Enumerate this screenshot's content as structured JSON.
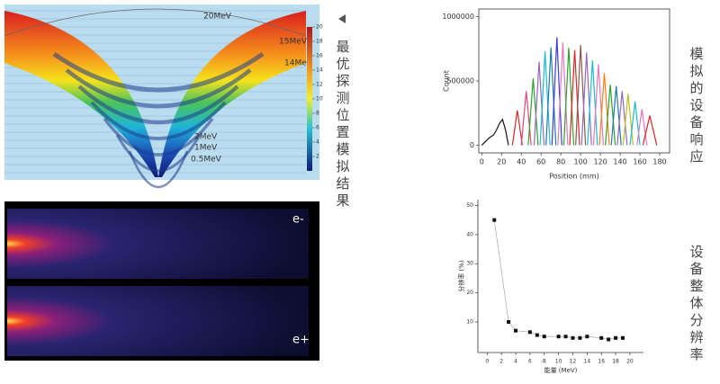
{
  "simulation": {
    "energy_labels": [
      "20MeV",
      "15MeV",
      "14MeV",
      "2MeV",
      "1MeV",
      "0.5MeV"
    ],
    "colorbar": {
      "lim": [
        0,
        20
      ],
      "ticks": [
        2,
        4,
        6,
        8,
        10,
        12,
        14,
        16,
        18,
        20
      ]
    }
  },
  "detector_images": {
    "labels": [
      "e-",
      "e+"
    ]
  },
  "captions": [
    "最优探测位置模拟结果",
    "模拟的设备响应",
    "设备整体分辨率"
  ],
  "chart_data": [
    {
      "type": "line",
      "x_label": "Position (mm)",
      "y_label": "Count",
      "xlim": [
        -3,
        190
      ],
      "ylim": [
        -60000,
        1060000
      ],
      "xticks": [
        0,
        20,
        40,
        60,
        80,
        100,
        120,
        140,
        160,
        180
      ],
      "yticks": [
        0,
        500000,
        1000000
      ],
      "series": [
        {
          "color": "#111111",
          "x": [
            0,
            4,
            8,
            12,
            15,
            18,
            21,
            24,
            27
          ],
          "values": [
            0,
            30000,
            60000,
            80000,
            120000,
            170000,
            200000,
            120000,
            0
          ]
        },
        {
          "color": "#d62728",
          "x": [
            31,
            36,
            41
          ],
          "values": [
            0,
            270000,
            0
          ]
        },
        {
          "color": "#e0457b",
          "x": [
            40,
            45,
            50
          ],
          "values": [
            0,
            420000,
            0
          ]
        },
        {
          "color": "#2ca02c",
          "x": [
            47,
            52,
            57
          ],
          "values": [
            0,
            520000,
            0
          ]
        },
        {
          "color": "#9467bd",
          "x": [
            53,
            58,
            63
          ],
          "values": [
            0,
            650000,
            0
          ]
        },
        {
          "color": "#17becf",
          "x": [
            59,
            64,
            69
          ],
          "values": [
            0,
            730000,
            0
          ]
        },
        {
          "color": "#1f77b4",
          "x": [
            65,
            70,
            75
          ],
          "values": [
            0,
            760000,
            0
          ]
        },
        {
          "color": "#3b3bd6",
          "x": [
            71,
            76,
            81
          ],
          "values": [
            0,
            840000,
            0
          ]
        },
        {
          "color": "#e377c2",
          "x": [
            77,
            82,
            87
          ],
          "values": [
            0,
            800000,
            0
          ]
        },
        {
          "color": "#2ca02c",
          "x": [
            83,
            88,
            93
          ],
          "values": [
            0,
            760000,
            0
          ]
        },
        {
          "color": "#d62728",
          "x": [
            89,
            94,
            99
          ],
          "values": [
            0,
            740000,
            0
          ]
        },
        {
          "color": "#8c564b",
          "x": [
            95,
            100,
            105
          ],
          "values": [
            0,
            780000,
            0
          ]
        },
        {
          "color": "#9467bd",
          "x": [
            101,
            106,
            111
          ],
          "values": [
            0,
            720000,
            0
          ]
        },
        {
          "color": "#17becf",
          "x": [
            107,
            112,
            117
          ],
          "values": [
            0,
            660000,
            0
          ]
        },
        {
          "color": "#e377c2",
          "x": [
            113,
            118,
            123
          ],
          "values": [
            0,
            630000,
            0
          ]
        },
        {
          "color": "#ff7f0e",
          "x": [
            119,
            124,
            129
          ],
          "values": [
            0,
            560000,
            0
          ]
        },
        {
          "color": "#2ca02c",
          "x": [
            125,
            130,
            135
          ],
          "values": [
            0,
            470000,
            0
          ]
        },
        {
          "color": "#1f77b4",
          "x": [
            131,
            136,
            141
          ],
          "values": [
            0,
            460000,
            0
          ]
        },
        {
          "color": "#9467bd",
          "x": [
            137,
            142,
            147
          ],
          "values": [
            0,
            420000,
            0
          ]
        },
        {
          "color": "#bcbd22",
          "x": [
            143,
            148,
            153
          ],
          "values": [
            0,
            400000,
            0
          ]
        },
        {
          "color": "#17becf",
          "x": [
            150,
            155,
            160
          ],
          "values": [
            0,
            340000,
            0
          ]
        },
        {
          "color": "#e377c2",
          "x": [
            157,
            162,
            167
          ],
          "values": [
            0,
            280000,
            0
          ]
        },
        {
          "color": "#d62728",
          "x": [
            163,
            170,
            177
          ],
          "values": [
            0,
            230000,
            0
          ]
        }
      ]
    },
    {
      "type": "scatter",
      "x_label": "能量 (MeV)",
      "y_label": "分辨率 (%)",
      "xlim": [
        -1.3,
        21.9
      ],
      "ylim": [
        -0.5,
        52
      ],
      "xticks": [
        0,
        2,
        4,
        6,
        8,
        10,
        12,
        14,
        16,
        18,
        20
      ],
      "yticks": [
        10,
        20,
        30,
        40,
        50
      ],
      "color": "#111111",
      "x": [
        1,
        3,
        4,
        6,
        7,
        8,
        10,
        11,
        12,
        13,
        14,
        16,
        17,
        18,
        19
      ],
      "values": [
        45,
        10,
        7,
        6.5,
        5.5,
        5,
        5,
        5,
        4.5,
        4.5,
        5,
        4.5,
        4,
        4.5,
        4.5
      ]
    }
  ]
}
